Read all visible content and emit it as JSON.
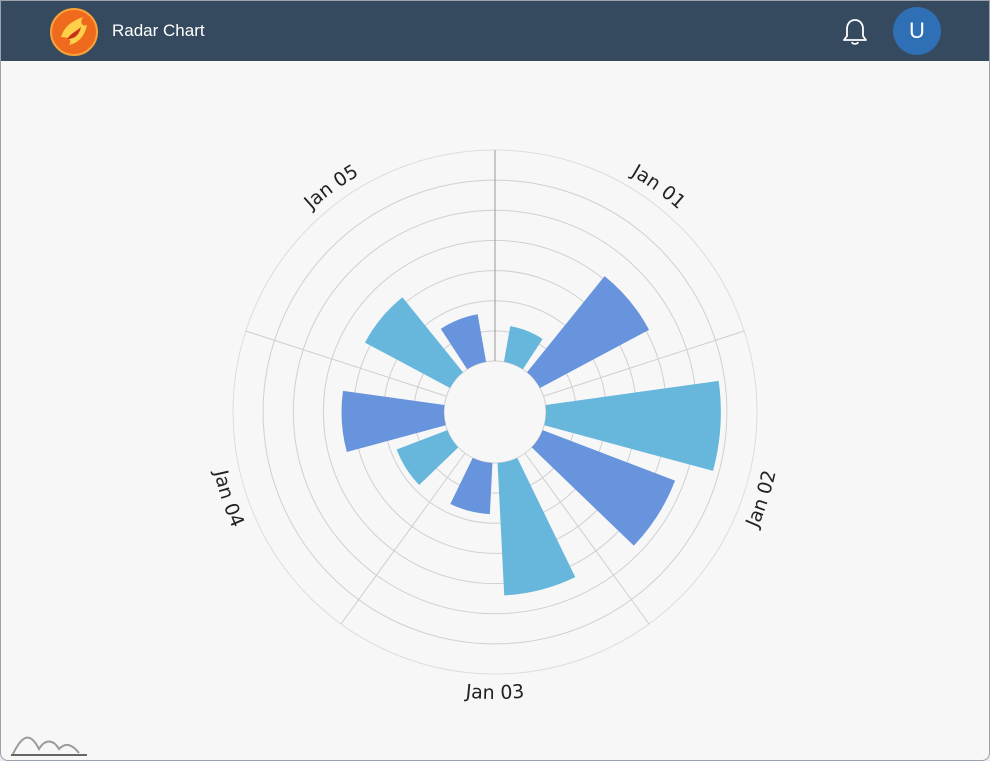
{
  "header": {
    "title": "Radar Chart",
    "logo_icon": "phoenix-logo-icon",
    "bell_icon": "bell-icon",
    "avatar_initial": "U"
  },
  "colors": {
    "header_bg": "#364a5f",
    "avatar_bg": "#2f6fb5",
    "series_light": "#67b7dc",
    "series_dark": "#6794dc"
  },
  "footer": {
    "logo_icon": "waves-logo-icon"
  },
  "chart_data": {
    "type": "bar",
    "subtype": "polar-column",
    "categories": [
      "Jan 01",
      "Jan 02",
      "Jan 03",
      "Jan 04",
      "Jan 05"
    ],
    "series": [
      {
        "values": [
          1.2,
          5.8,
          4.4,
          1.8,
          3.2
        ]
      },
      {
        "values": [
          4.1,
          4.7,
          1.7,
          3.4,
          1.6
        ]
      }
    ],
    "ylim": [
      0,
      7
    ],
    "grid": true,
    "start_angle_deg": 0,
    "legend": "none"
  }
}
